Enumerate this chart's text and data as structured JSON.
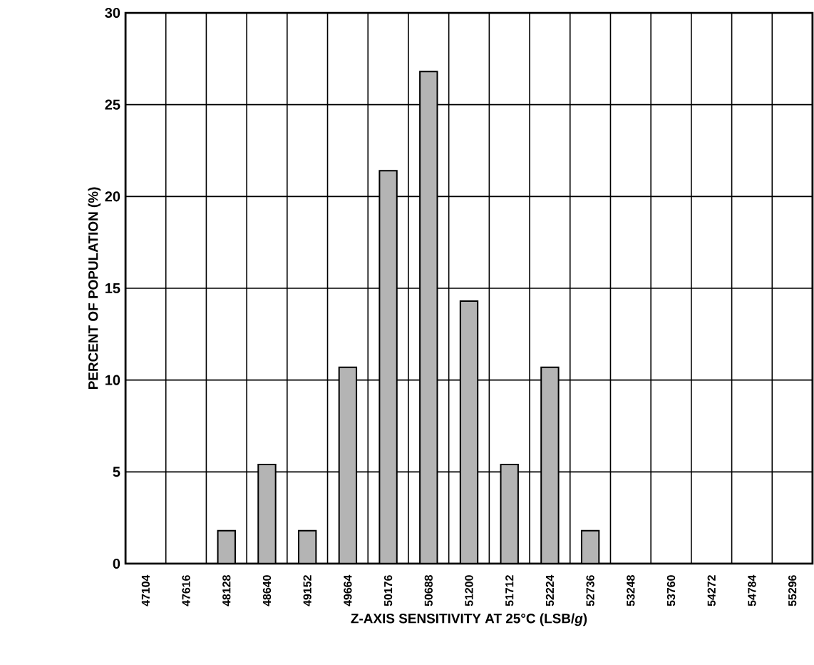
{
  "chart_data": {
    "type": "bar",
    "xlabel": "Z-AXIS SENSITIVITY AT 25°C (LSB/*g*)",
    "ylabel": "PERCENT OF POPULATION (%)",
    "categories": [
      "47104",
      "47616",
      "48128",
      "48640",
      "49152",
      "49664",
      "50176",
      "50688",
      "51200",
      "51712",
      "52224",
      "52736",
      "53248",
      "53760",
      "54272",
      "54784",
      "55296"
    ],
    "values": [
      0,
      0,
      1.8,
      5.4,
      1.8,
      10.7,
      21.4,
      26.8,
      14.3,
      5.4,
      10.7,
      1.8,
      0,
      0,
      0,
      0,
      0
    ],
    "color": "#b4b4b4",
    "ylim": [
      0,
      30
    ],
    "yticks": [
      0,
      5,
      10,
      15,
      20,
      25,
      30
    ],
    "grid": true
  }
}
